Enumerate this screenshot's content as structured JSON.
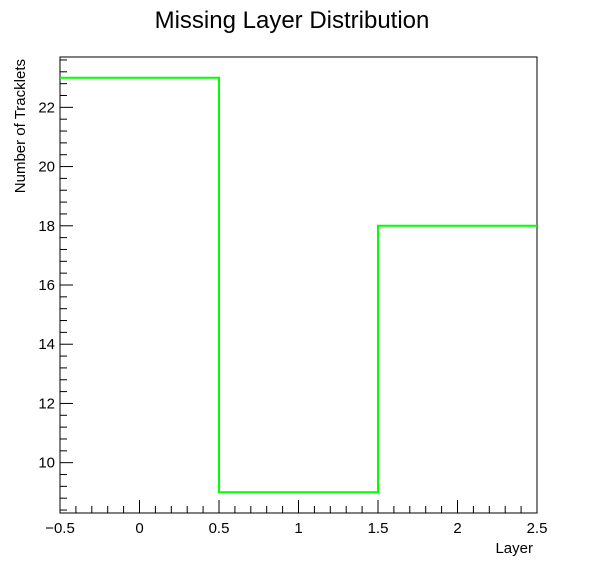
{
  "chart_data": {
    "type": "step",
    "title": "Missing Layer Distribution",
    "xlabel": "Layer",
    "ylabel": "Number of Tracklets",
    "xlim": [
      -0.5,
      2.5
    ],
    "ylim": [
      8.3,
      23.7
    ],
    "bins": [
      {
        "low": -0.5,
        "high": 0.5,
        "value": 23
      },
      {
        "low": 0.5,
        "high": 1.5,
        "value": 9
      },
      {
        "low": 1.5,
        "high": 2.5,
        "value": 18
      }
    ],
    "x_ticks": [
      -0.5,
      0,
      0.5,
      1,
      1.5,
      2,
      2.5
    ],
    "x_tick_labels": [
      "−0.5",
      "0",
      "0.5",
      "1",
      "1.5",
      "2",
      "2.5"
    ],
    "y_ticks": [
      10,
      12,
      14,
      16,
      18,
      20,
      22
    ],
    "y_tick_labels": [
      "10",
      "12",
      "14",
      "16",
      "18",
      "20",
      "22"
    ],
    "line_color": "#00ff00",
    "grid": false,
    "legend": "none"
  }
}
